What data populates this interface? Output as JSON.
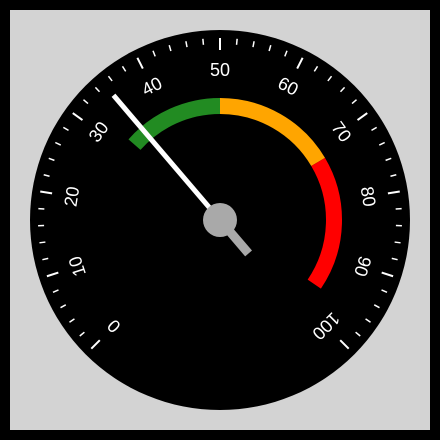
{
  "gauge": {
    "min": 0,
    "max": 100,
    "value": 35,
    "start_angle_deg": -135,
    "end_angle_deg": 135,
    "major_step": 10,
    "minor_step": 2,
    "labels": [
      "0",
      "10",
      "20",
      "30",
      "40",
      "50",
      "60",
      "70",
      "80",
      "90",
      "100"
    ],
    "bands": [
      {
        "from": 32,
        "to": 50,
        "color": "#228b22"
      },
      {
        "from": 50,
        "to": 72,
        "color": "#ffa500"
      },
      {
        "from": 72,
        "to": 96,
        "color": "#ff0000"
      }
    ],
    "colors": {
      "background": "#d3d3d3",
      "dial": "#000000",
      "ticks": "#ffffff",
      "labels": "#ffffff",
      "needle": "#ffffff",
      "needle_tail": "#a9a9a9",
      "hub": "#a9a9a9"
    }
  }
}
